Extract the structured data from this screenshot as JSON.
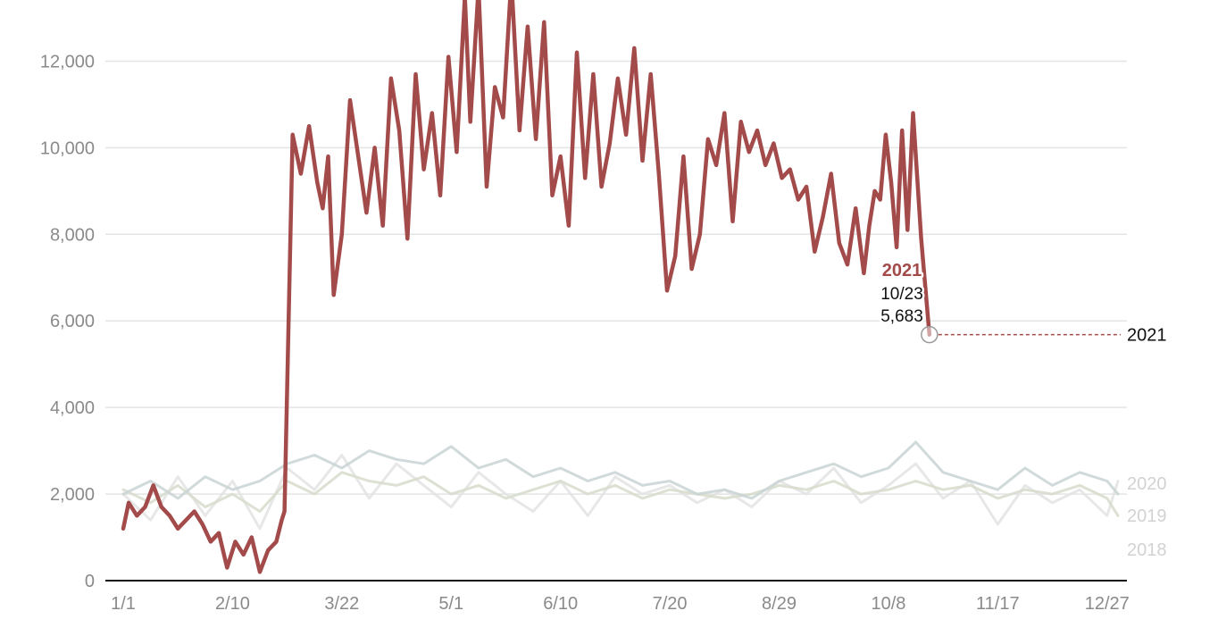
{
  "chart_data": {
    "type": "line",
    "title": "",
    "xlabel": "",
    "ylabel": "",
    "ylim": [
      0,
      13000
    ],
    "xlim": [
      "1/1",
      "12/31"
    ],
    "yticks": [
      0,
      2000,
      4000,
      6000,
      8000,
      10000,
      12000
    ],
    "ytick_labels": [
      "0",
      "2,000",
      "4,000",
      "6,000",
      "8,000",
      "10,000",
      "12,000"
    ],
    "xtick_labels": [
      "1/1",
      "2/10",
      "3/22",
      "5/1",
      "6/10",
      "7/20",
      "8/29",
      "10/8",
      "11/17",
      "12/27"
    ],
    "grid": true,
    "colors": {
      "2021": "#a34a4a",
      "2020": "#c9d3d3",
      "2019": "#d6dccc",
      "2018": "#e3e3e3"
    },
    "series": [
      {
        "name": "2018",
        "x": [
          "1/1",
          "1/11",
          "1/21",
          "1/31",
          "2/10",
          "2/20",
          "3/2",
          "3/12",
          "3/22",
          "4/1",
          "4/11",
          "4/21",
          "5/1",
          "5/11",
          "5/21",
          "5/31",
          "6/10",
          "6/20",
          "6/30",
          "7/10",
          "7/20",
          "7/30",
          "8/9",
          "8/19",
          "8/29",
          "9/8",
          "9/18",
          "9/28",
          "10/8",
          "10/18",
          "10/28",
          "11/7",
          "11/17",
          "11/27",
          "12/7",
          "12/17",
          "12/27",
          "12/31"
        ],
        "y": [
          2000,
          1400,
          2400,
          1500,
          2300,
          1200,
          2600,
          2100,
          2900,
          1900,
          2700,
          2200,
          1700,
          2500,
          2000,
          1600,
          2300,
          1500,
          2400,
          2000,
          2200,
          1800,
          2100,
          1700,
          2300,
          2000,
          2600,
          1800,
          2200,
          2700,
          1900,
          2300,
          1300,
          2200,
          1800,
          2100,
          1500,
          2300
        ]
      },
      {
        "name": "2019",
        "x": [
          "1/1",
          "1/11",
          "1/21",
          "1/31",
          "2/10",
          "2/20",
          "3/2",
          "3/12",
          "3/22",
          "4/1",
          "4/11",
          "4/21",
          "5/1",
          "5/11",
          "5/21",
          "5/31",
          "6/10",
          "6/20",
          "6/30",
          "7/10",
          "7/20",
          "7/30",
          "8/9",
          "8/19",
          "8/29",
          "9/8",
          "9/18",
          "9/28",
          "10/8",
          "10/18",
          "10/28",
          "11/7",
          "11/17",
          "11/27",
          "12/7",
          "12/17",
          "12/27",
          "12/31"
        ],
        "y": [
          2100,
          1800,
          2200,
          1700,
          2000,
          1600,
          2300,
          2000,
          2500,
          2300,
          2200,
          2400,
          2000,
          2200,
          1900,
          2100,
          2300,
          2000,
          2200,
          1900,
          2100,
          2000,
          1900,
          2000,
          2200,
          2100,
          2300,
          2000,
          2100,
          2300,
          2100,
          2200,
          1900,
          2100,
          2000,
          2200,
          1900,
          1500
        ]
      },
      {
        "name": "2020",
        "x": [
          "1/1",
          "1/11",
          "1/21",
          "1/31",
          "2/10",
          "2/20",
          "3/2",
          "3/12",
          "3/22",
          "4/1",
          "4/11",
          "4/21",
          "5/1",
          "5/11",
          "5/21",
          "5/31",
          "6/10",
          "6/20",
          "6/30",
          "7/10",
          "7/20",
          "7/30",
          "8/9",
          "8/19",
          "8/29",
          "9/8",
          "9/18",
          "9/28",
          "10/8",
          "10/18",
          "10/28",
          "11/7",
          "11/17",
          "11/27",
          "12/7",
          "12/17",
          "12/27",
          "12/31"
        ],
        "y": [
          2000,
          2300,
          1900,
          2400,
          2100,
          2300,
          2700,
          2900,
          2600,
          3000,
          2800,
          2700,
          3100,
          2600,
          2800,
          2400,
          2600,
          2300,
          2500,
          2200,
          2300,
          2000,
          2100,
          1900,
          2300,
          2500,
          2700,
          2400,
          2600,
          3200,
          2500,
          2300,
          2100,
          2600,
          2200,
          2500,
          2300,
          2000
        ]
      },
      {
        "name": "2021",
        "x": [
          "1/1",
          "1/3",
          "1/6",
          "1/9",
          "1/12",
          "1/15",
          "1/18",
          "1/21",
          "1/24",
          "1/27",
          "1/30",
          "2/2",
          "2/5",
          "2/8",
          "2/11",
          "2/14",
          "2/17",
          "2/20",
          "2/23",
          "2/26",
          "2/28",
          "3/1",
          "3/4",
          "3/7",
          "3/10",
          "3/13",
          "3/15",
          "3/17",
          "3/19",
          "3/22",
          "3/25",
          "3/28",
          "3/31",
          "4/3",
          "4/6",
          "4/9",
          "4/12",
          "4/15",
          "4/18",
          "4/21",
          "4/24",
          "4/27",
          "4/30",
          "5/3",
          "5/6",
          "5/8",
          "5/11",
          "5/14",
          "5/17",
          "5/20",
          "5/23",
          "5/26",
          "5/29",
          "6/1",
          "6/4",
          "6/7",
          "6/10",
          "6/13",
          "6/16",
          "6/19",
          "6/22",
          "6/25",
          "6/28",
          "7/1",
          "7/4",
          "7/7",
          "7/10",
          "7/13",
          "7/16",
          "7/19",
          "7/22",
          "7/25",
          "7/28",
          "7/31",
          "8/3",
          "8/6",
          "8/9",
          "8/12",
          "8/15",
          "8/18",
          "8/21",
          "8/24",
          "8/27",
          "8/30",
          "9/2",
          "9/5",
          "9/8",
          "9/11",
          "9/14",
          "9/17",
          "9/20",
          "9/23",
          "9/26",
          "9/29",
          "10/1",
          "10/3",
          "10/5",
          "10/7",
          "10/9",
          "10/11",
          "10/13",
          "10/15",
          "10/17",
          "10/20",
          "10/23"
        ],
        "y": [
          1200,
          1800,
          1500,
          1700,
          2200,
          1700,
          1500,
          1200,
          1400,
          1600,
          1300,
          900,
          1100,
          300,
          900,
          600,
          1000,
          200,
          700,
          900,
          1400,
          1600,
          10300,
          9400,
          10500,
          9200,
          8600,
          9800,
          6600,
          8000,
          11100,
          9800,
          8500,
          10000,
          8200,
          11600,
          10400,
          7900,
          11700,
          9500,
          10800,
          8900,
          12100,
          9900,
          13500,
          10600,
          13700,
          9100,
          11400,
          10700,
          13900,
          10400,
          12800,
          10200,
          12900,
          8900,
          9800,
          8200,
          12200,
          9300,
          11700,
          9100,
          10100,
          11600,
          10300,
          12300,
          9700,
          11700,
          9400,
          6700,
          7500,
          9800,
          7200,
          8000,
          10200,
          9600,
          10800,
          8300,
          10600,
          9900,
          10400,
          9600,
          10100,
          9300,
          9500,
          8800,
          9100,
          7600,
          8400,
          9400,
          7800,
          7300,
          8600,
          7100,
          8200,
          9000,
          8800,
          10300,
          9200,
          7700,
          10400,
          8100,
          10800,
          7900,
          5683
        ]
      }
    ],
    "annotation": {
      "series": "2021",
      "year": "2021",
      "date": "10/23",
      "value": 5683,
      "value_label": "5,683"
    }
  }
}
